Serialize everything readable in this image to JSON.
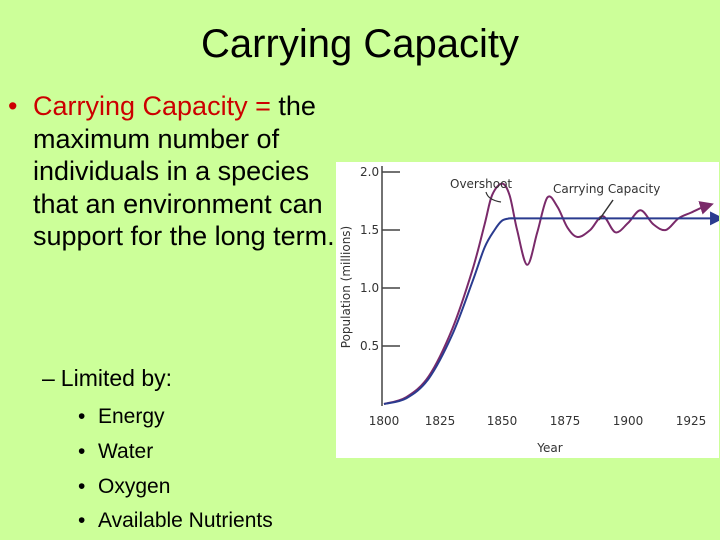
{
  "slide": {
    "title": "Carrying Capacity",
    "bullet_lead": "Carrying Capacity =",
    "bullet_rest": "the maximum number of individuals in a species that an environment can support for the long term.",
    "sub_bullet": "Limited by:",
    "sub_items": [
      "Energy",
      "Water",
      "Oxygen",
      "Available Nutrients"
    ],
    "title_color": "#000000",
    "accent_color": "#cc0000",
    "background_color": "#ccff99"
  },
  "chart_data": {
    "type": "line",
    "xlabel": "Year",
    "ylabel": "Population (millions)",
    "x_ticks": [
      "1800",
      "1825",
      "1850",
      "1875",
      "1900",
      "1925"
    ],
    "y_ticks": [
      "2.0",
      "1.5",
      "1.0",
      "0.5"
    ],
    "xlim": [
      1800,
      1937
    ],
    "ylim": [
      0,
      2.1
    ],
    "annotations": [
      "Overshoot",
      "Carrying Capacity"
    ],
    "series": [
      {
        "color": "#7a2a6a",
        "x": [
          1800,
          1810,
          1820,
          1830,
          1838,
          1843,
          1846,
          1850,
          1853,
          1856,
          1860,
          1864,
          1868,
          1872,
          1876,
          1880,
          1885,
          1890,
          1895,
          1900,
          1905,
          1910,
          1915,
          1920,
          1925,
          1930,
          1933
        ],
        "y": [
          0.0,
          0.06,
          0.24,
          0.65,
          1.15,
          1.55,
          1.8,
          1.9,
          1.8,
          1.5,
          1.2,
          1.48,
          1.78,
          1.7,
          1.52,
          1.44,
          1.5,
          1.62,
          1.48,
          1.56,
          1.67,
          1.55,
          1.5,
          1.6,
          1.65,
          1.7,
          1.72
        ]
      },
      {
        "color": "#2a3b8f",
        "x": [
          1800,
          1810,
          1820,
          1830,
          1838,
          1843,
          1847,
          1850,
          1853,
          1855,
          1860,
          1937
        ],
        "y": [
          0.0,
          0.05,
          0.22,
          0.6,
          1.05,
          1.35,
          1.5,
          1.58,
          1.6,
          1.6,
          1.6,
          1.6
        ]
      }
    ]
  }
}
